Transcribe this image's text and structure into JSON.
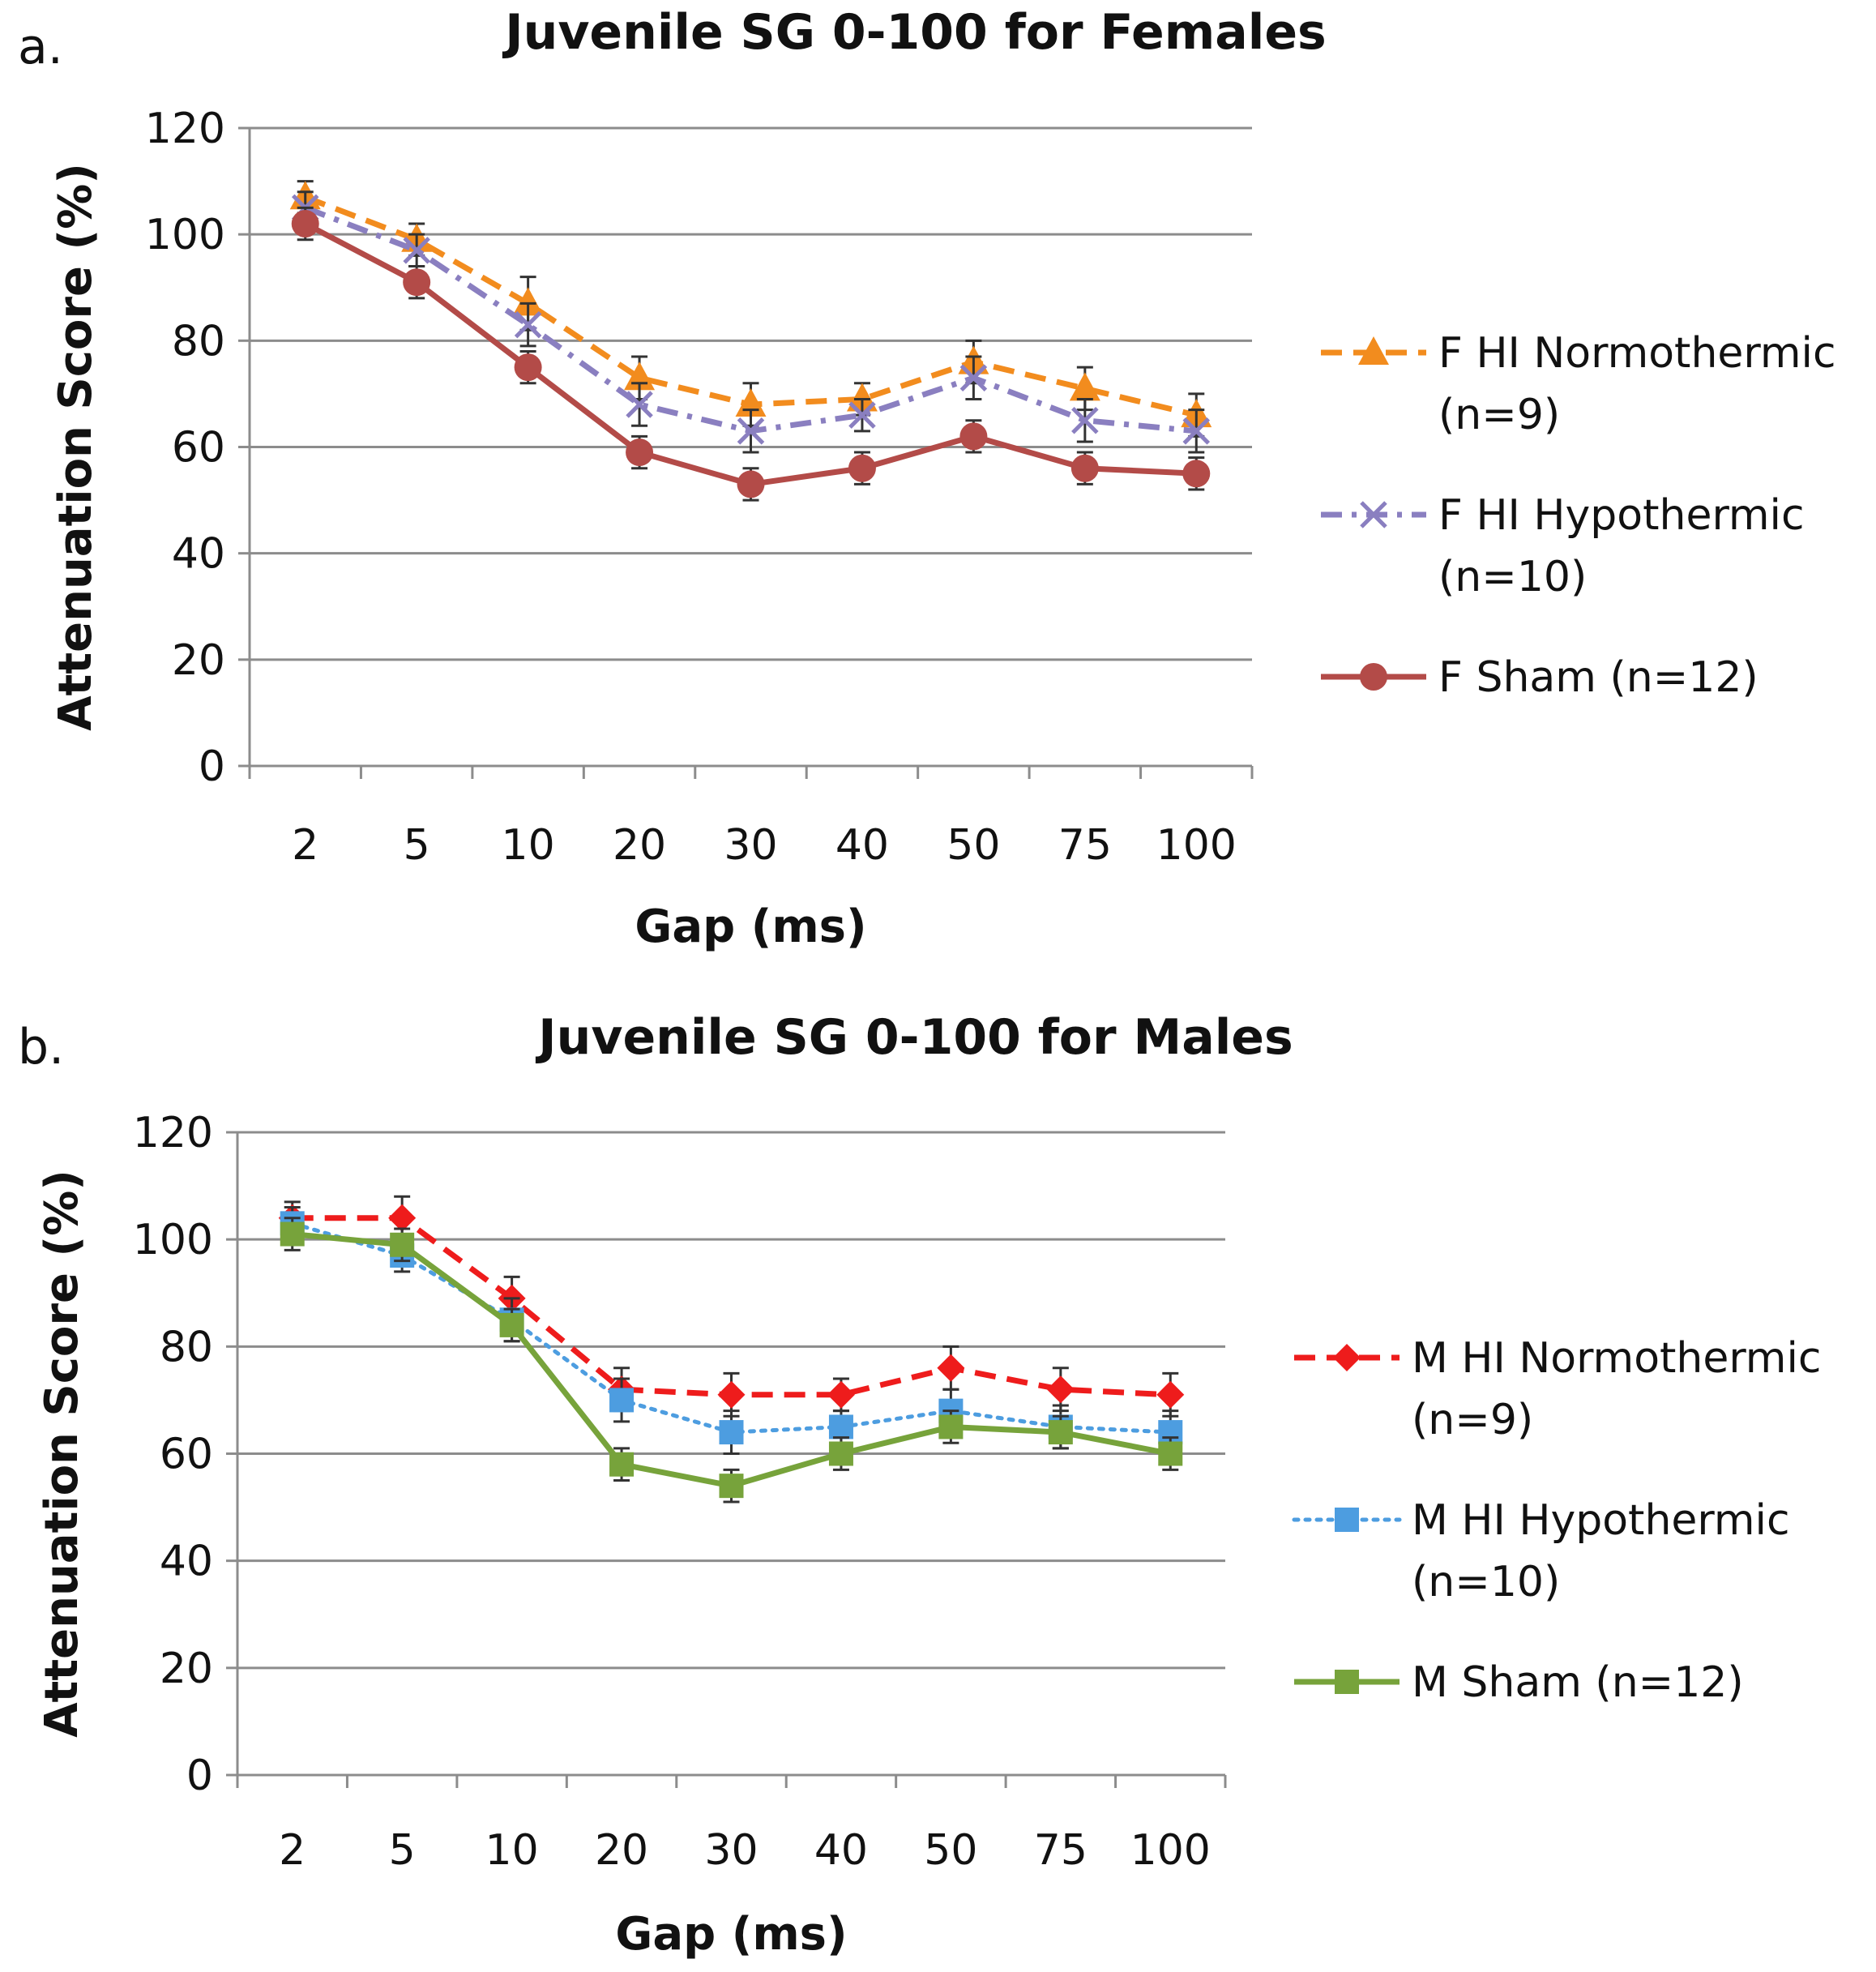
{
  "chart_data": [
    {
      "type": "line",
      "panel_label": "a.",
      "title": "Juvenile SG 0-100 for Females",
      "xlabel": "Gap (ms)",
      "ylabel": "Attenuation Score (%)",
      "categories": [
        "2",
        "5",
        "10",
        "20",
        "30",
        "40",
        "50",
        "75",
        "100"
      ],
      "ylim": [
        0,
        120
      ],
      "yticks": [
        0,
        20,
        40,
        60,
        80,
        100,
        120
      ],
      "grid": true,
      "legend_position": "right",
      "series": [
        {
          "name": "F HI Normothermic",
          "legend_lines": [
            "F HI Normothermic",
            "(n=9)"
          ],
          "values": [
            107,
            99,
            87,
            73,
            68,
            69,
            76,
            71,
            66
          ],
          "errors": [
            3,
            3,
            5,
            4,
            4,
            3,
            4,
            4,
            4
          ],
          "color": "#f28c1e",
          "dash": "dashed",
          "marker": "triangle"
        },
        {
          "name": "F HI Hypothermic",
          "legend_lines": [
            "F HI Hypothermic",
            "(n=10)"
          ],
          "values": [
            105,
            97,
            83,
            68,
            63,
            66,
            73,
            65,
            63
          ],
          "errors": [
            3,
            3,
            4,
            4,
            4,
            3,
            4,
            4,
            4
          ],
          "color": "#8a7fc0",
          "dash": "dashdot",
          "marker": "x"
        },
        {
          "name": "F Sham",
          "legend_lines": [
            "F Sham (n=12)"
          ],
          "values": [
            102,
            91,
            75,
            59,
            53,
            56,
            62,
            56,
            55
          ],
          "errors": [
            3,
            3,
            3,
            3,
            3,
            3,
            3,
            3,
            3
          ],
          "color": "#b34b48",
          "dash": "solid",
          "marker": "circle"
        }
      ]
    },
    {
      "type": "line",
      "panel_label": "b.",
      "title": "Juvenile SG 0-100 for Males",
      "xlabel": "Gap (ms)",
      "ylabel": "Attenuation Score (%)",
      "categories": [
        "2",
        "5",
        "10",
        "20",
        "30",
        "40",
        "50",
        "75",
        "100"
      ],
      "ylim": [
        0,
        120
      ],
      "yticks": [
        0,
        20,
        40,
        60,
        80,
        100,
        120
      ],
      "grid": true,
      "legend_position": "right",
      "series": [
        {
          "name": "M HI Normothermic",
          "legend_lines": [
            "M HI Normothermic",
            "(n=9)"
          ],
          "values": [
            104,
            104,
            89,
            72,
            71,
            71,
            76,
            72,
            71
          ],
          "errors": [
            3,
            4,
            4,
            4,
            4,
            3,
            4,
            4,
            4
          ],
          "color": "#ee1c1c",
          "dash": "dashed",
          "marker": "diamond"
        },
        {
          "name": "M HI Hypothermic",
          "legend_lines": [
            "M HI Hypothermic",
            "(n=10)"
          ],
          "values": [
            103,
            97,
            85,
            70,
            64,
            65,
            68,
            65,
            64
          ],
          "errors": [
            3,
            3,
            4,
            4,
            4,
            3,
            4,
            4,
            4
          ],
          "color": "#4d9de0",
          "dash": "dotted",
          "marker": "square"
        },
        {
          "name": "M Sham",
          "legend_lines": [
            "M Sham (n=12)"
          ],
          "values": [
            101,
            99,
            84,
            58,
            54,
            60,
            65,
            64,
            60
          ],
          "errors": [
            3,
            3,
            3,
            3,
            3,
            3,
            3,
            3,
            3
          ],
          "color": "#77a33b",
          "dash": "solid",
          "marker": "square"
        }
      ]
    }
  ]
}
